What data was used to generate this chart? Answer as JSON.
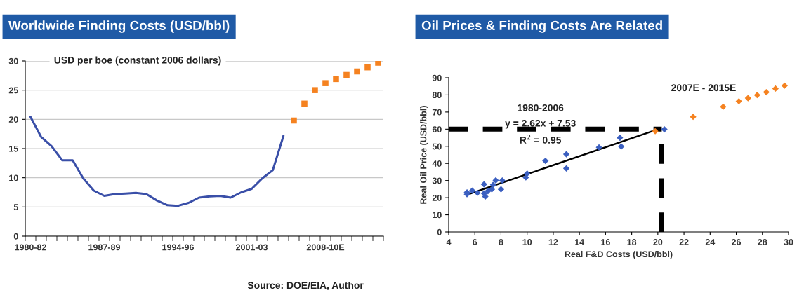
{
  "chart_data": [
    {
      "type": "line",
      "title": "Worldwide Finding Costs (USD/bbl)",
      "categories": [
        "1980-82",
        null,
        null,
        null,
        null,
        null,
        null,
        "1987-89",
        null,
        null,
        null,
        null,
        null,
        null,
        "1994-96",
        null,
        null,
        null,
        null,
        null,
        null,
        "2001-03",
        null,
        null,
        null,
        null,
        null,
        null,
        "2008-10E",
        null,
        null,
        null,
        null,
        null
      ],
      "series": [
        {
          "color": "#3a4fa8",
          "marker": "none",
          "values": [
            20.4,
            17.0,
            15.4,
            13.0,
            13.0,
            9.9,
            7.8,
            6.9,
            7.2,
            7.3,
            7.4,
            7.2,
            6.1,
            5.3,
            5.2,
            5.7,
            6.6,
            6.8,
            6.9,
            6.6,
            7.5,
            8.1,
            9.9,
            11.3,
            17.1,
            null,
            null,
            null,
            null,
            null,
            null,
            null,
            null,
            null
          ]
        },
        {
          "type": "scatter",
          "color": "#f58220",
          "marker": "square",
          "values": [
            null,
            null,
            null,
            null,
            null,
            null,
            null,
            null,
            null,
            null,
            null,
            null,
            null,
            null,
            null,
            null,
            null,
            null,
            null,
            null,
            null,
            null,
            null,
            null,
            null,
            19.8,
            22.7,
            25.0,
            26.2,
            26.9,
            27.6,
            28.2,
            28.9,
            29.7
          ]
        }
      ],
      "ylim": [
        0,
        30
      ],
      "yticks": [
        0,
        5,
        10,
        15,
        20,
        25,
        30
      ],
      "grid": "y",
      "legend": false,
      "annotations": [
        "USD per boe (constant 2006 dollars)",
        "Source: DOE/EIA, Author"
      ]
    },
    {
      "type": "scatter",
      "title": "Oil Prices & Finding Costs Are Related",
      "xlabel": "Real F&D Costs (USD/bbl)",
      "ylabel": "Real Oil Price (USD/bbl)",
      "series": [
        {
          "color": "#3b5fc0",
          "marker": "diamond",
          "x": [
            5.4,
            5.4,
            5.8,
            6.2,
            6.7,
            6.7,
            6.8,
            7.0,
            7.3,
            7.4,
            7.6,
            8.0,
            8.1,
            10.0,
            9.9,
            11.4,
            13.0,
            13.0,
            15.5,
            17.1,
            17.2,
            20.5
          ],
          "values": [
            23.1,
            22.0,
            24.1,
            22.8,
            27.8,
            22.5,
            20.7,
            23.8,
            24.9,
            27.5,
            30.1,
            24.9,
            30.0,
            34.1,
            31.8,
            41.5,
            45.4,
            37.1,
            49.4,
            55.0,
            49.9,
            59.9
          ]
        },
        {
          "color": "#f58220",
          "marker": "diamond",
          "x": [
            19.8,
            22.7,
            25.0,
            26.2,
            26.9,
            27.6,
            28.3,
            29.0,
            29.7
          ],
          "values": [
            58.8,
            67.2,
            73.1,
            76.3,
            78.1,
            79.9,
            81.6,
            83.7,
            85.4
          ]
        },
        {
          "type": "line",
          "color": "#000000",
          "marker": "none",
          "x": [
            5.4,
            20.0
          ],
          "values": [
            21.7,
            59.9
          ]
        }
      ],
      "xlim": [
        4,
        30
      ],
      "xticks": [
        4,
        6,
        8,
        10,
        12,
        14,
        16,
        18,
        20,
        22,
        24,
        26,
        28,
        30
      ],
      "ylim": [
        0,
        90
      ],
      "yticks": [
        0,
        10,
        20,
        30,
        40,
        50,
        60,
        70,
        80,
        90
      ],
      "grid": false,
      "legend": false,
      "ref_lines": [
        {
          "axis": "y",
          "value": 60,
          "color": "#000000",
          "line_style": "dashed"
        },
        {
          "axis": "x",
          "value": 20.3,
          "color": "#000000",
          "line_style": "dashed"
        }
      ],
      "annotations": [
        "1980-2006",
        "y = 2.62x + 7.53",
        "R$^{2}$ = 0.95",
        "2007E - 2015E"
      ]
    }
  ]
}
